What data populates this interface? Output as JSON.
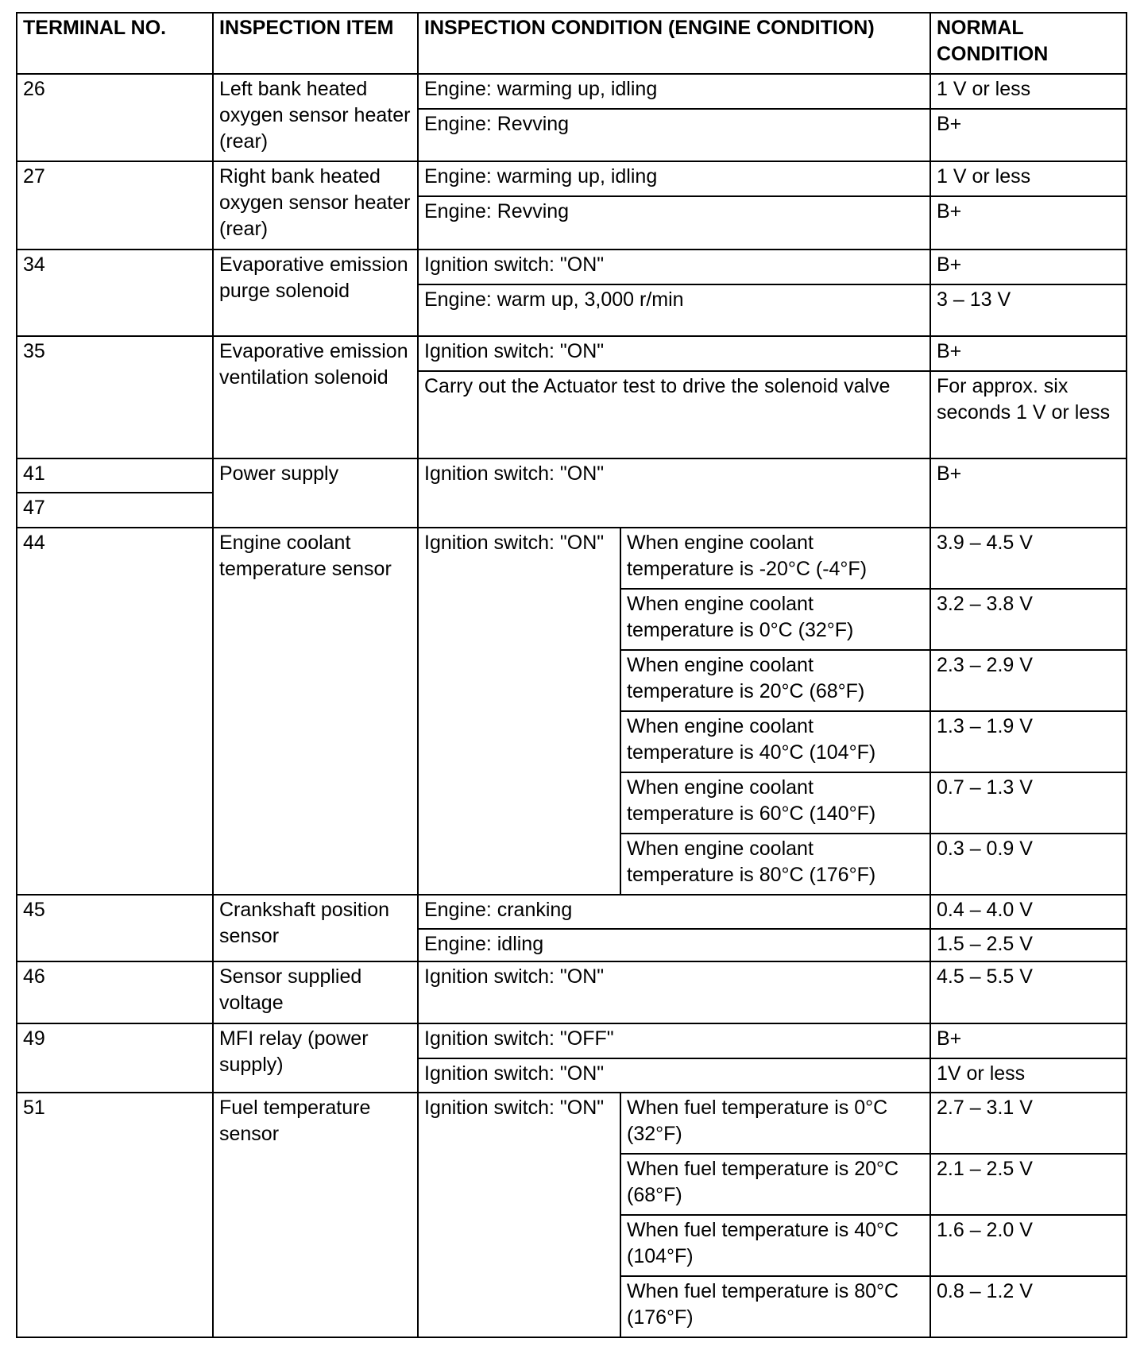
{
  "header": {
    "terminal": "TERMINAL NO.",
    "item": "INSPECTION ITEM",
    "condition": "INSPECTION CONDITION (ENGINE CONDITION)",
    "normal": "NORMAL CONDITION"
  },
  "rows": {
    "t26": {
      "terminal": "26",
      "item": "Left bank heated oxygen sensor heater (rear)",
      "conditions": [
        {
          "condition": "Engine: warming up, idling",
          "normal": "1 V or less"
        },
        {
          "condition": "Engine: Revving",
          "normal": "B+"
        }
      ]
    },
    "t27": {
      "terminal": "27",
      "item": "Right bank heated oxygen sensor heater (rear)",
      "conditions": [
        {
          "condition": "Engine: warming up, idling",
          "normal": "1 V or less"
        },
        {
          "condition": "Engine: Revving",
          "normal": "B+"
        }
      ]
    },
    "t34": {
      "terminal": "34",
      "item": "Evaporative emission purge solenoid",
      "conditions": [
        {
          "condition": "Ignition switch: \"ON\"",
          "normal": "B+"
        },
        {
          "condition": "Engine: warm up, 3,000 r/min",
          "normal": "3 – 13 V"
        }
      ]
    },
    "t35": {
      "terminal": "35",
      "item": "Evaporative emission ventilation solenoid",
      "conditions": [
        {
          "condition": "Ignition switch: \"ON\"",
          "normal": "B+"
        },
        {
          "condition": "Carry out the Actuator test to drive the solenoid valve",
          "normal": "For approx. six seconds 1 V or less"
        }
      ]
    },
    "t41": {
      "terminal_a": "41",
      "terminal_b": "47",
      "item": "Power supply",
      "condition": "Ignition switch: \"ON\"",
      "normal": "B+"
    },
    "t44": {
      "terminal": "44",
      "item": "Engine coolant temperature sensor",
      "condition": "Ignition switch: \"ON\"",
      "sub": [
        {
          "when": "When engine coolant temperature is -20°C (-4°F)",
          "normal": "3.9 – 4.5 V"
        },
        {
          "when": "When engine coolant temperature is 0°C (32°F)",
          "normal": "3.2 – 3.8 V"
        },
        {
          "when": "When engine coolant temperature is 20°C (68°F)",
          "normal": "2.3 – 2.9 V"
        },
        {
          "when": "When engine coolant temperature is 40°C (104°F)",
          "normal": "1.3 – 1.9 V"
        },
        {
          "when": "When engine coolant temperature is 60°C (140°F)",
          "normal": "0.7 – 1.3 V"
        },
        {
          "when": "When engine coolant temperature is 80°C (176°F)",
          "normal": "0.3 – 0.9 V"
        }
      ]
    },
    "t45": {
      "terminal": "45",
      "item": "Crankshaft position sensor",
      "conditions": [
        {
          "condition": "Engine: cranking",
          "normal": "0.4 – 4.0 V"
        },
        {
          "condition": "Engine: idling",
          "normal": "1.5 – 2.5 V"
        }
      ]
    },
    "t46": {
      "terminal": "46",
      "item": "Sensor supplied voltage",
      "condition": "Ignition switch: \"ON\"",
      "normal": "4.5 – 5.5 V"
    },
    "t49": {
      "terminal": "49",
      "item": "MFI relay (power supply)",
      "conditions": [
        {
          "condition": "Ignition switch: \"OFF\"",
          "normal": "B+"
        },
        {
          "condition": "Ignition switch: \"ON\"",
          "normal": "1V or less"
        }
      ]
    },
    "t51": {
      "terminal": "51",
      "item": "Fuel temperature sensor",
      "condition": "Ignition switch: \"ON\"",
      "sub": [
        {
          "when": "When fuel temperature is 0°C (32°F)",
          "normal": "2.7 – 3.1 V"
        },
        {
          "when": "When fuel temperature is 20°C (68°F)",
          "normal": "2.1 – 2.5 V"
        },
        {
          "when": "When fuel temperature is 40°C (104°F)",
          "normal": "1.6 – 2.0 V"
        },
        {
          "when": "When fuel temperature is 80°C (176°F)",
          "normal": "0.8 – 1.2 V"
        }
      ]
    }
  }
}
